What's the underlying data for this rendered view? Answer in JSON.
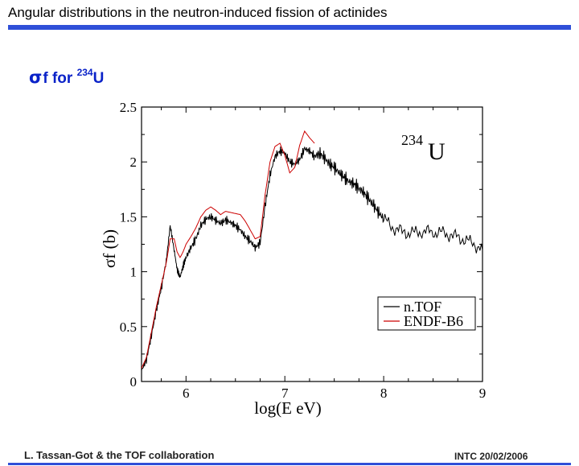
{
  "slide": {
    "title": "Angular distributions in the neutron-induced fission of actinides",
    "subtitle": {
      "sigma": "σ",
      "f": "f",
      "for": "for",
      "isotope_mass": "234",
      "isotope_symbol": "U"
    },
    "footer_left": "L. Tassan-Got & the TOF collaboration",
    "footer_right": "INTC 20/02/2006",
    "accent_color": "#2f4fd8",
    "subtitle_color": "#0a22c8"
  },
  "chart_data": {
    "type": "line",
    "title": "",
    "xlabel": "log(E eV)",
    "ylabel": "σf (b)",
    "xlim": [
      5.55,
      9.0
    ],
    "ylim": [
      0,
      2.5
    ],
    "xticks": [
      6,
      7,
      8,
      9
    ],
    "yticks": [
      0,
      0.5,
      1,
      1.5,
      2,
      2.5
    ],
    "xtick_labels": [
      "6",
      "7",
      "8",
      "9"
    ],
    "ytick_labels": [
      "0",
      "0.5",
      "1",
      "1.5",
      "2",
      "2.5"
    ],
    "annotation": {
      "mass": "234",
      "symbol": "U"
    },
    "legend_position": "bottom-right",
    "series": [
      {
        "name": "n.TOF",
        "color": "#000000",
        "x": [
          5.55,
          5.6,
          5.65,
          5.7,
          5.75,
          5.8,
          5.84,
          5.88,
          5.91,
          5.94,
          5.97,
          6.0,
          6.05,
          6.1,
          6.15,
          6.2,
          6.25,
          6.3,
          6.35,
          6.4,
          6.45,
          6.5,
          6.55,
          6.6,
          6.65,
          6.7,
          6.75,
          6.8,
          6.85,
          6.9,
          6.95,
          7.0,
          7.05,
          7.1,
          7.15,
          7.2,
          7.25,
          7.3,
          7.35,
          7.4,
          7.45,
          7.5,
          7.55,
          7.6,
          7.65,
          7.7,
          7.75,
          7.8,
          7.85,
          7.9,
          7.95,
          8.0,
          8.1,
          8.2,
          8.3,
          8.4,
          8.5,
          8.6,
          8.7,
          8.8,
          8.9,
          9.0
        ],
        "y": [
          0.1,
          0.2,
          0.42,
          0.65,
          0.85,
          1.1,
          1.42,
          1.2,
          1.02,
          0.95,
          1.05,
          1.13,
          1.22,
          1.3,
          1.42,
          1.48,
          1.5,
          1.47,
          1.44,
          1.47,
          1.45,
          1.42,
          1.38,
          1.32,
          1.28,
          1.22,
          1.26,
          1.6,
          1.88,
          2.05,
          2.1,
          2.08,
          2.0,
          1.98,
          2.02,
          2.12,
          2.1,
          2.05,
          2.08,
          2.04,
          1.98,
          1.95,
          1.9,
          1.86,
          1.82,
          1.8,
          1.76,
          1.72,
          1.66,
          1.6,
          1.54,
          1.48,
          1.4,
          1.36,
          1.35,
          1.37,
          1.36,
          1.35,
          1.33,
          1.3,
          1.26,
          1.2
        ]
      },
      {
        "name": "ENDF-B6",
        "color": "#cc0000",
        "x": [
          5.55,
          5.6,
          5.65,
          5.7,
          5.75,
          5.8,
          5.84,
          5.88,
          5.91,
          5.94,
          5.97,
          6.0,
          6.05,
          6.1,
          6.15,
          6.2,
          6.25,
          6.3,
          6.35,
          6.4,
          6.45,
          6.5,
          6.55,
          6.6,
          6.65,
          6.7,
          6.75,
          6.8,
          6.85,
          6.9,
          6.95,
          7.0,
          7.05,
          7.1,
          7.15,
          7.2,
          7.25,
          7.3
        ],
        "y": [
          0.12,
          0.22,
          0.45,
          0.68,
          0.88,
          1.08,
          1.3,
          1.3,
          1.18,
          1.13,
          1.18,
          1.25,
          1.32,
          1.4,
          1.5,
          1.56,
          1.59,
          1.56,
          1.52,
          1.55,
          1.54,
          1.53,
          1.52,
          1.46,
          1.38,
          1.3,
          1.32,
          1.7,
          2.0,
          2.14,
          2.17,
          2.06,
          1.9,
          1.95,
          2.15,
          2.28,
          2.22,
          2.17
        ]
      }
    ]
  }
}
